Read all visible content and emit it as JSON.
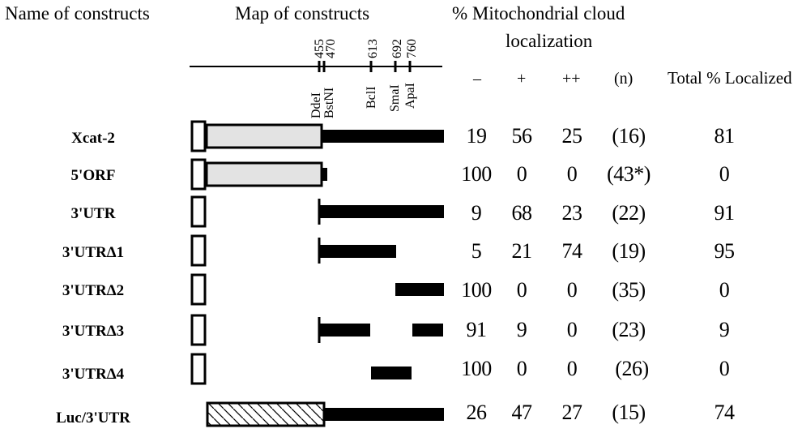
{
  "header": {
    "col_name": "Name of  constructs",
    "col_map": "Map of  constructs",
    "col_loc_line1": "% Mitochondrial cloud",
    "col_loc_line2": "localization",
    "col_minus": "–",
    "col_plus": "+",
    "col_plusplus": "++",
    "col_n": "(n)",
    "col_total": "Total % Localized"
  },
  "map_positions": [
    "455",
    "470",
    "613",
    "692",
    "760"
  ],
  "map_sites": [
    "DdeI",
    "BstNI",
    "BclI",
    "SmaI",
    "ApaI"
  ],
  "rows": [
    {
      "name": "Xcat-2",
      "minus": "19",
      "plus": "56",
      "plusplus": "25",
      "n": "(16)",
      "total": "81"
    },
    {
      "name": "5'ORF",
      "minus": "100",
      "plus": "0",
      "plusplus": "0",
      "n": "(43*)",
      "total": "0"
    },
    {
      "name": "3'UTR",
      "minus": "9",
      "plus": "68",
      "plusplus": "23",
      "n": "(22)",
      "total": "91"
    },
    {
      "name": "3'UTRΔ1",
      "minus": "5",
      "plus": "21",
      "plusplus": "74",
      "n": "(19)",
      "total": "95"
    },
    {
      "name": "3'UTRΔ2",
      "minus": "100",
      "plus": "0",
      "plusplus": "0",
      "n": "(35)",
      "total": "0"
    },
    {
      "name": "3'UTRΔ3",
      "minus": "91",
      "plus": "9",
      "plusplus": "0",
      "n": "(23)",
      "total": "9"
    },
    {
      "name": "3'UTRΔ4",
      "minus": "100",
      "plus": "0",
      "plusplus": "0",
      "n": "(26)",
      "total": "0"
    },
    {
      "name": "Luc/3'UTR",
      "minus": "26",
      "plus": "47",
      "plusplus": "27",
      "n": "(15)",
      "total": "74"
    }
  ]
}
